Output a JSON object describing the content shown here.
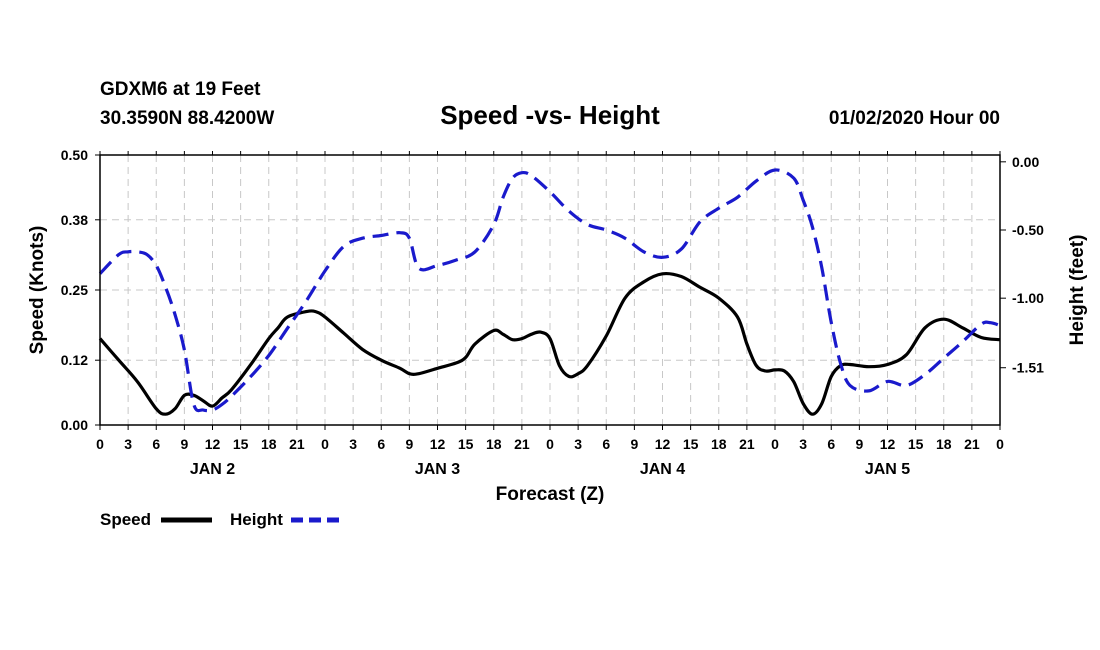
{
  "header": {
    "station": "GDXM6 at 19 Feet",
    "coords": "30.3590N 88.4200W",
    "date": "01/02/2020 Hour 00"
  },
  "colors": {
    "speed": "#000000",
    "height": "#1a1acc",
    "grid": "#c8c8c8"
  },
  "legend": {
    "speed_label": "Speed",
    "height_label": "Height"
  },
  "chart_data": {
    "type": "line",
    "title": "Speed -vs- Height",
    "xlabel": "Forecast (Z)",
    "ylabel": "Speed (Knots)",
    "y2label": "Height (feet)",
    "xlim": [
      0,
      96
    ],
    "ylim": [
      0,
      0.5
    ],
    "y2lim": [
      -1.93,
      0.05
    ],
    "y_ticks": [
      "0.00",
      "0.12",
      "0.25",
      "0.38",
      "0.50"
    ],
    "y2_ticks": [
      "0.00",
      "-0.50",
      "-1.00",
      "-1.51"
    ],
    "x_tick_labels": [
      "0",
      "3",
      "6",
      "9",
      "12",
      "15",
      "18",
      "21",
      "0",
      "3",
      "6",
      "9",
      "12",
      "15",
      "18",
      "21",
      "0",
      "3",
      "6",
      "9",
      "12",
      "15",
      "18",
      "21",
      "0",
      "3",
      "6",
      "9",
      "12",
      "15",
      "18",
      "21",
      "0"
    ],
    "day_labels": [
      {
        "label": "JAN 2",
        "x": 12
      },
      {
        "label": "JAN 3",
        "x": 36
      },
      {
        "label": "JAN 4",
        "x": 60
      },
      {
        "label": "JAN 5",
        "x": 84
      }
    ],
    "series": [
      {
        "name": "Speed",
        "axis": "left",
        "x": [
          0,
          2,
          4,
          6,
          7,
          8,
          9,
          10,
          11,
          12,
          13,
          14,
          16,
          18,
          19,
          20,
          22,
          23,
          24,
          26,
          28,
          30,
          32,
          33,
          34,
          36,
          38,
          39,
          40,
          42,
          43,
          44,
          45,
          46,
          47,
          48,
          49,
          50,
          51,
          52,
          54,
          56,
          58,
          60,
          62,
          64,
          66,
          68,
          69,
          70,
          71,
          72,
          73,
          74,
          75,
          76,
          77,
          78,
          79,
          80,
          82,
          84,
          86,
          88,
          90,
          92,
          94,
          96
        ],
        "values": [
          0.16,
          0.12,
          0.08,
          0.03,
          0.02,
          0.03,
          0.055,
          0.055,
          0.045,
          0.035,
          0.05,
          0.065,
          0.11,
          0.16,
          0.18,
          0.2,
          0.21,
          0.21,
          0.2,
          0.17,
          0.14,
          0.12,
          0.105,
          0.095,
          0.095,
          0.105,
          0.115,
          0.125,
          0.15,
          0.175,
          0.168,
          0.158,
          0.16,
          0.168,
          0.172,
          0.16,
          0.11,
          0.09,
          0.095,
          0.11,
          0.165,
          0.235,
          0.265,
          0.28,
          0.275,
          0.255,
          0.235,
          0.2,
          0.15,
          0.11,
          0.1,
          0.102,
          0.1,
          0.08,
          0.04,
          0.02,
          0.04,
          0.09,
          0.11,
          0.112,
          0.108,
          0.112,
          0.13,
          0.18,
          0.196,
          0.18,
          0.162,
          0.158
        ]
      },
      {
        "name": "Height",
        "axis": "right",
        "x": [
          0,
          2,
          3,
          4,
          5,
          6,
          7,
          8,
          9,
          10,
          11,
          12,
          13,
          14,
          16,
          18,
          20,
          22,
          24,
          26,
          28,
          30,
          32,
          33,
          34,
          36,
          38,
          40,
          42,
          43,
          44,
          45,
          46,
          48,
          50,
          52,
          54,
          56,
          58,
          60,
          62,
          64,
          66,
          68,
          70,
          72,
          74,
          75,
          76,
          77,
          78,
          79,
          80,
          82,
          84,
          86,
          88,
          90,
          92,
          94,
          95,
          96
        ],
        "values": [
          -0.82,
          -0.68,
          -0.66,
          -0.66,
          -0.68,
          -0.76,
          -0.92,
          -1.12,
          -1.38,
          -1.78,
          -1.82,
          -1.82,
          -1.78,
          -1.72,
          -1.58,
          -1.42,
          -1.22,
          -1.02,
          -0.8,
          -0.62,
          -0.56,
          -0.54,
          -0.52,
          -0.56,
          -0.78,
          -0.76,
          -0.72,
          -0.66,
          -0.46,
          -0.26,
          -0.12,
          -0.08,
          -0.1,
          -0.22,
          -0.36,
          -0.46,
          -0.5,
          -0.56,
          -0.66,
          -0.7,
          -0.64,
          -0.44,
          -0.34,
          -0.26,
          -0.14,
          -0.06,
          -0.12,
          -0.28,
          -0.48,
          -0.78,
          -1.18,
          -1.48,
          -1.64,
          -1.68,
          -1.61,
          -1.64,
          -1.56,
          -1.44,
          -1.32,
          -1.19,
          -1.18,
          -1.2
        ]
      }
    ]
  }
}
